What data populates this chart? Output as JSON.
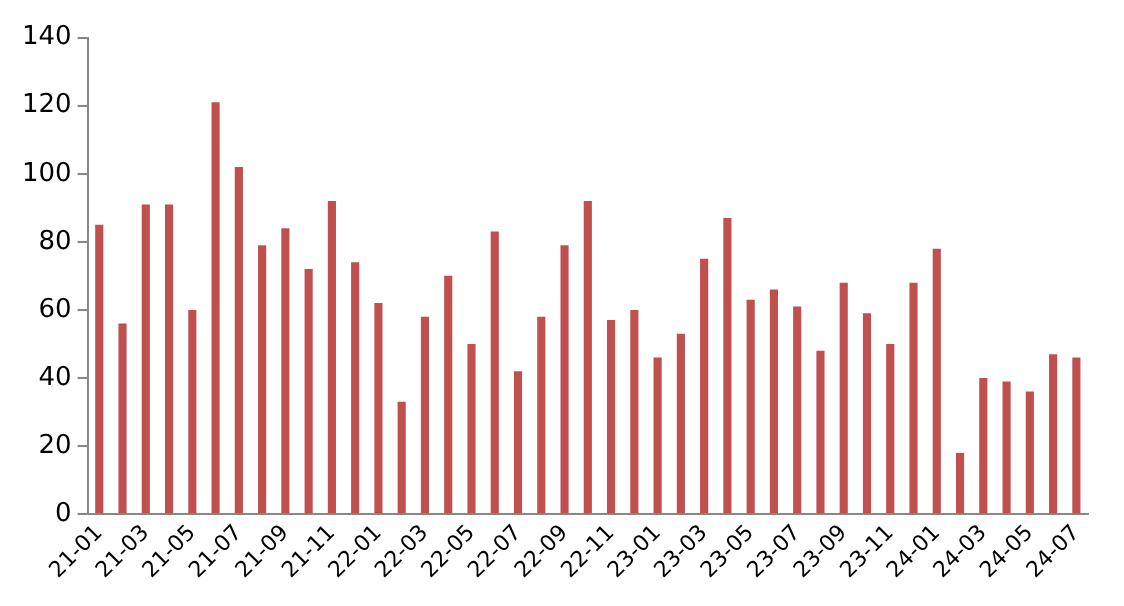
{
  "chart_data": {
    "type": "bar",
    "categories": [
      "21-01",
      null,
      "21-03",
      null,
      "21-05",
      null,
      "21-07",
      null,
      "21-09",
      null,
      "21-11",
      null,
      "22-01",
      null,
      "22-03",
      null,
      "22-05",
      null,
      "22-07",
      null,
      "22-09",
      null,
      "22-11",
      null,
      "23-01",
      null,
      "23-03",
      null,
      "23-05",
      null,
      "23-07",
      null,
      "23-09",
      null,
      "23-11",
      null,
      "24-01",
      null,
      "24-03",
      null,
      "24-05",
      null,
      "24-07"
    ],
    "values": [
      85,
      56,
      91,
      91,
      60,
      121,
      102,
      79,
      84,
      72,
      92,
      74,
      62,
      33,
      58,
      70,
      50,
      83,
      42,
      58,
      79,
      92,
      57,
      60,
      46,
      53,
      75,
      87,
      63,
      66,
      61,
      48,
      68,
      59,
      50,
      68,
      78,
      18,
      40,
      39,
      36,
      47,
      46
    ],
    "color": "#c0504d",
    "ylim": [
      0,
      140
    ],
    "yticks": [
      0,
      20,
      40,
      60,
      80,
      100,
      120,
      140
    ],
    "grid": false,
    "legend": false
  }
}
